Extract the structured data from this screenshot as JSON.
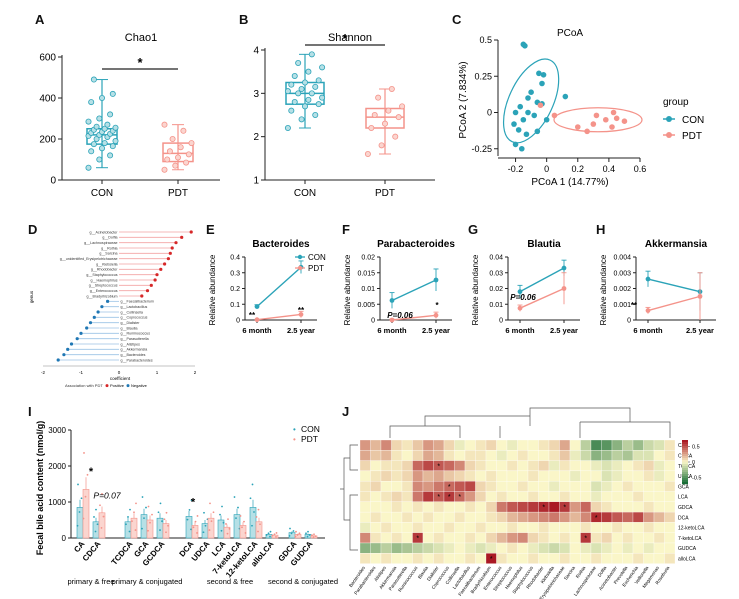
{
  "panel_letters": [
    "A",
    "B",
    "C",
    "D",
    "E",
    "F",
    "G",
    "H",
    "I",
    "J"
  ],
  "colors": {
    "con": "#2ba3b8",
    "pdt": "#f4938a",
    "con_fill": "#b6e0e6",
    "pdt_fill": "#fbd5cf"
  },
  "chart_data": [
    {
      "panel": "A",
      "type": "box",
      "title": "Chao1",
      "categories": [
        "CON",
        "PDT"
      ],
      "ylim": [
        0,
        600
      ],
      "yticks": [
        0,
        200,
        400,
        600
      ],
      "series": [
        {
          "name": "CON",
          "q1": 175,
          "median": 220,
          "q3": 250,
          "whisker_low": 60,
          "whisker_high": 490,
          "points": [
            60,
            100,
            120,
            140,
            155,
            165,
            175,
            180,
            190,
            200,
            210,
            215,
            220,
            225,
            230,
            235,
            240,
            245,
            250,
            255,
            260,
            270,
            285,
            300,
            320,
            380,
            400,
            420,
            490
          ]
        },
        {
          "name": "PDT",
          "q1": 90,
          "median": 130,
          "q3": 180,
          "whisker_low": 50,
          "whisker_high": 270,
          "points": [
            50,
            70,
            85,
            100,
            110,
            125,
            140,
            160,
            180,
            200,
            240,
            270
          ]
        }
      ],
      "annotation": "*"
    },
    {
      "panel": "B",
      "type": "box",
      "title": "Shannon",
      "categories": [
        "CON",
        "PDT"
      ],
      "ylim": [
        1,
        4
      ],
      "yticks": [
        1,
        2,
        3,
        4
      ],
      "series": [
        {
          "name": "CON",
          "q1": 2.75,
          "median": 3.0,
          "q3": 3.25,
          "whisker_low": 2.2,
          "whisker_high": 3.9,
          "points": [
            2.2,
            2.4,
            2.5,
            2.6,
            2.7,
            2.75,
            2.8,
            2.85,
            2.9,
            3.0,
            3.0,
            3.05,
            3.1,
            3.15,
            3.2,
            3.25,
            3.3,
            3.4,
            3.5,
            3.6,
            3.7,
            3.9
          ]
        },
        {
          "name": "PDT",
          "q1": 2.2,
          "median": 2.45,
          "q3": 2.65,
          "whisker_low": 1.6,
          "whisker_high": 3.1,
          "points": [
            1.6,
            1.8,
            2.0,
            2.2,
            2.3,
            2.45,
            2.5,
            2.6,
            2.7,
            2.9,
            3.1
          ]
        }
      ],
      "annotation": "*"
    },
    {
      "panel": "C",
      "type": "scatter",
      "title": "PCoA",
      "xlabel": "PCoA 1 (14.77%)",
      "ylabel": "PCoA 2 (7.834%)",
      "xlim": [
        -0.3,
        0.6
      ],
      "ylim": [
        -0.3,
        0.5
      ],
      "xticks": [
        -0.2,
        0.0,
        0.2,
        0.4,
        0.6
      ],
      "yticks": [
        -0.25,
        0.0,
        0.25,
        0.5
      ],
      "legend_title": "group",
      "legend_placement": "right",
      "series": [
        {
          "name": "CON",
          "points": [
            [
              -0.15,
              0.47
            ],
            [
              -0.14,
              0.46
            ],
            [
              -0.05,
              0.27
            ],
            [
              -0.02,
              0.26
            ],
            [
              -0.03,
              0.2
            ],
            [
              -0.1,
              0.14
            ],
            [
              -0.12,
              0.1
            ],
            [
              -0.06,
              0.07
            ],
            [
              -0.03,
              0.06
            ],
            [
              -0.17,
              0.04
            ],
            [
              -0.2,
              0.0
            ],
            [
              -0.12,
              0.0
            ],
            [
              -0.08,
              -0.02
            ],
            [
              -0.15,
              -0.05
            ],
            [
              -0.21,
              -0.08
            ],
            [
              -0.18,
              -0.12
            ],
            [
              -0.13,
              -0.15
            ],
            [
              -0.06,
              -0.13
            ],
            [
              -0.2,
              -0.22
            ],
            [
              -0.16,
              -0.25
            ],
            [
              0.12,
              0.11
            ],
            [
              0.0,
              -0.05
            ]
          ]
        },
        {
          "name": "PDT",
          "points": [
            [
              0.05,
              -0.02
            ],
            [
              -0.04,
              0.05
            ],
            [
              0.2,
              -0.1
            ],
            [
              0.3,
              -0.08
            ],
            [
              0.32,
              -0.02
            ],
            [
              0.38,
              -0.05
            ],
            [
              0.42,
              -0.1
            ],
            [
              0.43,
              0.0
            ],
            [
              0.45,
              -0.04
            ],
            [
              0.5,
              -0.06
            ],
            [
              0.26,
              -0.13
            ]
          ]
        }
      ]
    },
    {
      "panel": "D",
      "type": "bar",
      "xlabel": "coefficient",
      "ylabel": "genus",
      "xlim": [
        -2,
        2
      ],
      "xticks": [
        -2,
        -1,
        0,
        1,
        2
      ],
      "legend": [
        "Positive",
        "Negative"
      ],
      "legend_caption": "Association with PDT",
      "categories": [
        "g__Acinetobacter",
        "g__Dolfia",
        "g__Lachnospiraceae",
        "g__Rothia",
        "g__Sarcina",
        "g__unidentified_Erysipelotrichaceae",
        "g__Klebsiella",
        "g__Rhodobacter",
        "g__Staphylococcus",
        "g__Haemophilus",
        "g__Streptococcus",
        "g__Enterococcus",
        "g__Bradyrhizobium",
        "g__Faecalibacterium",
        "g__Lactobacillus",
        "g__Collinsella",
        "g__Coprococcus",
        "g__Dialister",
        "g__Blautia",
        "g__Ruminococcus",
        "g__Parasutterella",
        "g__Alistipes",
        "g__Akkermansia",
        "g__Bacteroides",
        "g__Parabacteroides"
      ],
      "values": [
        1.9,
        1.65,
        1.5,
        1.4,
        1.35,
        1.3,
        1.2,
        1.1,
        1.0,
        0.95,
        0.85,
        0.75,
        0.6,
        -0.3,
        -0.45,
        -0.55,
        -0.65,
        -0.75,
        -0.85,
        -1.0,
        -1.1,
        -1.25,
        -1.35,
        -1.45,
        -1.6
      ]
    },
    {
      "panel": "E",
      "type": "line",
      "title": "Bacteroides",
      "ylabel": "Relative abundance",
      "categories": [
        "6 month",
        "2.5 year"
      ],
      "ylim": [
        0,
        0.4
      ],
      "yticks": [
        0.0,
        0.1,
        0.2,
        0.3,
        0.4
      ],
      "series": [
        {
          "name": "CON",
          "values": [
            0.085,
            0.335
          ],
          "errors": [
            0.012,
            0.04
          ]
        },
        {
          "name": "PDT",
          "values": [
            0.002,
            0.035
          ],
          "errors": [
            0.002,
            0.02
          ]
        }
      ],
      "annotations": [
        "**",
        "**"
      ]
    },
    {
      "panel": "F",
      "type": "line",
      "title": "Parabacteroides",
      "ylabel": "Relative abundance",
      "categories": [
        "6 month",
        "2.5 year"
      ],
      "ylim": [
        0,
        0.02
      ],
      "yticks": [
        0.0,
        0.005,
        0.01,
        0.015,
        0.02
      ],
      "series": [
        {
          "name": "CON",
          "values": [
            0.0062,
            0.0127
          ],
          "errors": [
            0.0025,
            0.0035
          ]
        },
        {
          "name": "PDT",
          "values": [
            0.0,
            0.0015
          ],
          "errors": [
            0.0003,
            0.001
          ]
        }
      ],
      "annotations": [
        "P=0.06",
        "*"
      ]
    },
    {
      "panel": "G",
      "type": "line",
      "title": "Blautia",
      "ylabel": "Relative abundance",
      "categories": [
        "6 month",
        "2.5 year"
      ],
      "ylim": [
        0,
        0.04
      ],
      "yticks": [
        0.0,
        0.01,
        0.02,
        0.03,
        0.04
      ],
      "series": [
        {
          "name": "CON",
          "values": [
            0.018,
            0.033
          ],
          "errors": [
            0.004,
            0.005
          ]
        },
        {
          "name": "PDT",
          "values": [
            0.0075,
            0.02
          ],
          "errors": [
            0.002,
            0.01
          ]
        }
      ],
      "annotations": [
        "P=0.06"
      ]
    },
    {
      "panel": "H",
      "type": "line",
      "title": "Akkermansia",
      "ylabel": "Relative abundance",
      "categories": [
        "6 month",
        "2.5 year"
      ],
      "ylim": [
        0,
        0.004
      ],
      "yticks": [
        0.0,
        0.001,
        0.002,
        0.003,
        0.004
      ],
      "series": [
        {
          "name": "CON",
          "values": [
            0.0026,
            0.0018
          ],
          "errors": [
            0.0005,
            0.0012
          ]
        },
        {
          "name": "PDT",
          "values": [
            0.0006,
            0.0015
          ],
          "errors": [
            0.0002,
            0.0015
          ]
        }
      ],
      "annotations": [
        "**"
      ]
    },
    {
      "panel": "I",
      "type": "bar",
      "ylabel": "Fecal bile acid content (nmol/g)",
      "ylim": [
        0,
        3000
      ],
      "yticks": [
        0,
        1000,
        2000,
        3000
      ],
      "categories": [
        "CA",
        "CDCA",
        "TCDCA",
        "GCA",
        "GCDCA",
        "DCA",
        "UDCA",
        "LCA",
        "7-ketoLCA",
        "12-ketoLCA",
        "alloLCA",
        "GDCA",
        "GUDCA"
      ],
      "groups": [
        {
          "name": "primary & free",
          "categories": [
            "CA",
            "CDCA"
          ]
        },
        {
          "name": "primary & conjugated",
          "categories": [
            "TCDCA",
            "GCA",
            "GCDCA"
          ]
        },
        {
          "name": "second & free",
          "categories": [
            "DCA",
            "UDCA",
            "LCA",
            "7-ketoLCA",
            "12-ketoLCA",
            "alloLCA"
          ]
        },
        {
          "name": "second & conjugated",
          "categories": [
            "GDCA",
            "GUDCA"
          ]
        }
      ],
      "series": [
        {
          "name": "CON",
          "values": [
            850,
            450,
            450,
            650,
            550,
            600,
            400,
            500,
            650,
            850,
            100,
            150,
            100
          ]
        },
        {
          "name": "PDT",
          "values": [
            1350,
            700,
            550,
            500,
            400,
            350,
            550,
            300,
            350,
            450,
            80,
            100,
            60
          ]
        }
      ],
      "annotations": [
        "*",
        "P=0.07",
        "*"
      ]
    },
    {
      "panel": "J",
      "type": "heatmap",
      "rows": [
        "CA",
        "CDCA",
        "TCDCA",
        "UDCA",
        "GCA",
        "LCA",
        "GDCA",
        "DCA",
        "12-ketoLCA",
        "7-ketoLCA",
        "GUDCA",
        "alloLCA"
      ],
      "columns": [
        "Bacteroides",
        "Parabacteroides",
        "Alistipes",
        "Akkermansia",
        "Parasutterella",
        "Ruminococcus",
        "Blautia",
        "Dialister",
        "Coprococcus",
        "Collinsella",
        "Lactobacillus",
        "Faecalibacterium",
        "Bradyrhizobium",
        "Enterococcus",
        "Streptococcus",
        "Haemophilus",
        "Staphylococcus",
        "Rhodobacter",
        "Klebsiella",
        "Erysipelotrichaceae",
        "Sarcina",
        "Rothia",
        "Lachnospiraceae",
        "Dolfia",
        "Acinetobacter",
        "Prevotella",
        "Escherichia",
        "Veillonella",
        "Megamonas",
        "Roseburia"
      ],
      "colorbar_ticks": [
        0.5,
        0,
        -0.5
      ],
      "values": [
        [
          0.3,
          0.2,
          0.35,
          0.1,
          0.05,
          0.15,
          0.3,
          0.25,
          0.1,
          -0.05,
          0.0,
          0.05,
          0.1,
          0.0,
          -0.05,
          0.0,
          0.0,
          0.05,
          0.1,
          0.25,
          0.0,
          -0.2,
          -0.55,
          -0.5,
          -0.35,
          -0.2,
          -0.3,
          -0.15,
          -0.1,
          0.05
        ],
        [
          0.25,
          0.15,
          0.2,
          0.05,
          0.0,
          0.1,
          0.25,
          0.2,
          0.05,
          0.0,
          0.05,
          0.05,
          0.0,
          -0.05,
          0.0,
          0.05,
          0.0,
          0.0,
          0.05,
          0.15,
          -0.05,
          -0.15,
          -0.35,
          -0.3,
          -0.2,
          -0.25,
          -0.1,
          -0.1,
          0.0,
          0.05
        ],
        [
          0.1,
          0.0,
          0.05,
          0.05,
          0.1,
          0.45,
          0.55,
          0.5,
          0.45,
          0.35,
          0.1,
          0.05,
          0.0,
          0.0,
          0.05,
          0.0,
          0.05,
          0.1,
          -0.05,
          0.05,
          0.0,
          0.0,
          -0.05,
          -0.1,
          -0.05,
          0.0,
          0.05,
          0.1,
          -0.05,
          0.0
        ],
        [
          0.0,
          0.05,
          0.1,
          0.05,
          0.1,
          0.3,
          0.2,
          0.25,
          0.15,
          0.1,
          0.05,
          0.0,
          0.05,
          0.0,
          0.0,
          0.0,
          0.05,
          0.0,
          0.0,
          0.0,
          -0.05,
          0.0,
          0.0,
          -0.1,
          -0.05,
          0.0,
          0.0,
          0.05,
          -0.05,
          0.0
        ],
        [
          0.05,
          0.1,
          0.0,
          0.0,
          0.05,
          0.35,
          0.3,
          0.4,
          0.45,
          0.5,
          0.55,
          0.1,
          0.05,
          0.0,
          0.0,
          0.05,
          0.0,
          0.0,
          -0.05,
          0.0,
          0.0,
          0.0,
          -0.1,
          -0.05,
          0.0,
          0.05,
          0.0,
          0.0,
          0.0,
          0.05
        ],
        [
          0.05,
          0.0,
          0.05,
          0.1,
          0.05,
          0.4,
          0.6,
          0.5,
          0.6,
          0.45,
          0.3,
          0.1,
          0.0,
          0.05,
          0.0,
          0.0,
          0.05,
          0.0,
          0.0,
          0.05,
          0.0,
          0.0,
          -0.05,
          0.0,
          0.0,
          0.0,
          0.05,
          0.0,
          0.0,
          0.0
        ],
        [
          0.0,
          0.0,
          0.0,
          0.05,
          0.0,
          0.05,
          0.0,
          0.05,
          0.0,
          0.0,
          0.05,
          0.0,
          0.1,
          0.4,
          0.5,
          0.55,
          0.6,
          0.65,
          0.7,
          0.6,
          0.3,
          0.45,
          0.1,
          0.05,
          0.0,
          0.0,
          0.0,
          0.05,
          0.0,
          0.0
        ],
        [
          0.0,
          0.05,
          0.0,
          0.0,
          0.05,
          0.0,
          0.05,
          0.0,
          0.0,
          0.05,
          0.0,
          0.0,
          0.05,
          0.1,
          0.2,
          0.25,
          0.3,
          0.35,
          0.4,
          0.3,
          0.2,
          0.35,
          0.65,
          0.6,
          0.5,
          0.45,
          0.55,
          0.3,
          0.2,
          0.1
        ],
        [
          -0.05,
          0.0,
          0.05,
          0.0,
          0.0,
          0.05,
          0.0,
          0.0,
          0.05,
          0.0,
          0.0,
          0.05,
          0.0,
          0.0,
          0.05,
          0.0,
          0.0,
          0.05,
          0.0,
          0.0,
          0.0,
          0.05,
          0.0,
          0.0,
          0.05,
          0.0,
          0.0,
          0.05,
          0.0,
          0.0
        ],
        [
          0.35,
          0.05,
          0.0,
          0.05,
          0.0,
          0.6,
          0.0,
          0.05,
          0.0,
          0.0,
          0.05,
          0.0,
          0.1,
          0.2,
          0.3,
          0.35,
          0.1,
          0.05,
          0.0,
          0.05,
          0.0,
          0.6,
          0.05,
          0.1,
          0.0,
          0.05,
          0.0,
          0.0,
          0.05,
          0.0
        ],
        [
          -0.35,
          -0.3,
          -0.2,
          -0.3,
          -0.25,
          -0.2,
          -0.15,
          -0.1,
          -0.05,
          0.0,
          -0.05,
          -0.1,
          -0.05,
          0.0,
          0.05,
          0.0,
          -0.05,
          -0.1,
          -0.15,
          -0.1,
          0.0,
          -0.05,
          -0.1,
          -0.05,
          0.0,
          -0.05,
          0.0,
          -0.05,
          0.0,
          0.0
        ],
        [
          0.05,
          0.0,
          0.05,
          0.0,
          0.0,
          0.05,
          0.0,
          0.05,
          0.0,
          0.0,
          0.05,
          0.0,
          0.7,
          0.05,
          0.0,
          0.0,
          0.05,
          0.0,
          0.0,
          0.05,
          0.0,
          0.0,
          0.05,
          0.0,
          0.0,
          0.0,
          0.05,
          0.0,
          0.0,
          0.05
        ]
      ],
      "significant_cells": [
        [
          2,
          7
        ],
        [
          4,
          8
        ],
        [
          5,
          7
        ],
        [
          5,
          8
        ],
        [
          5,
          9
        ],
        [
          6,
          17
        ],
        [
          6,
          19
        ],
        [
          7,
          22
        ],
        [
          9,
          5
        ],
        [
          9,
          21
        ],
        [
          11,
          12
        ]
      ]
    }
  ]
}
